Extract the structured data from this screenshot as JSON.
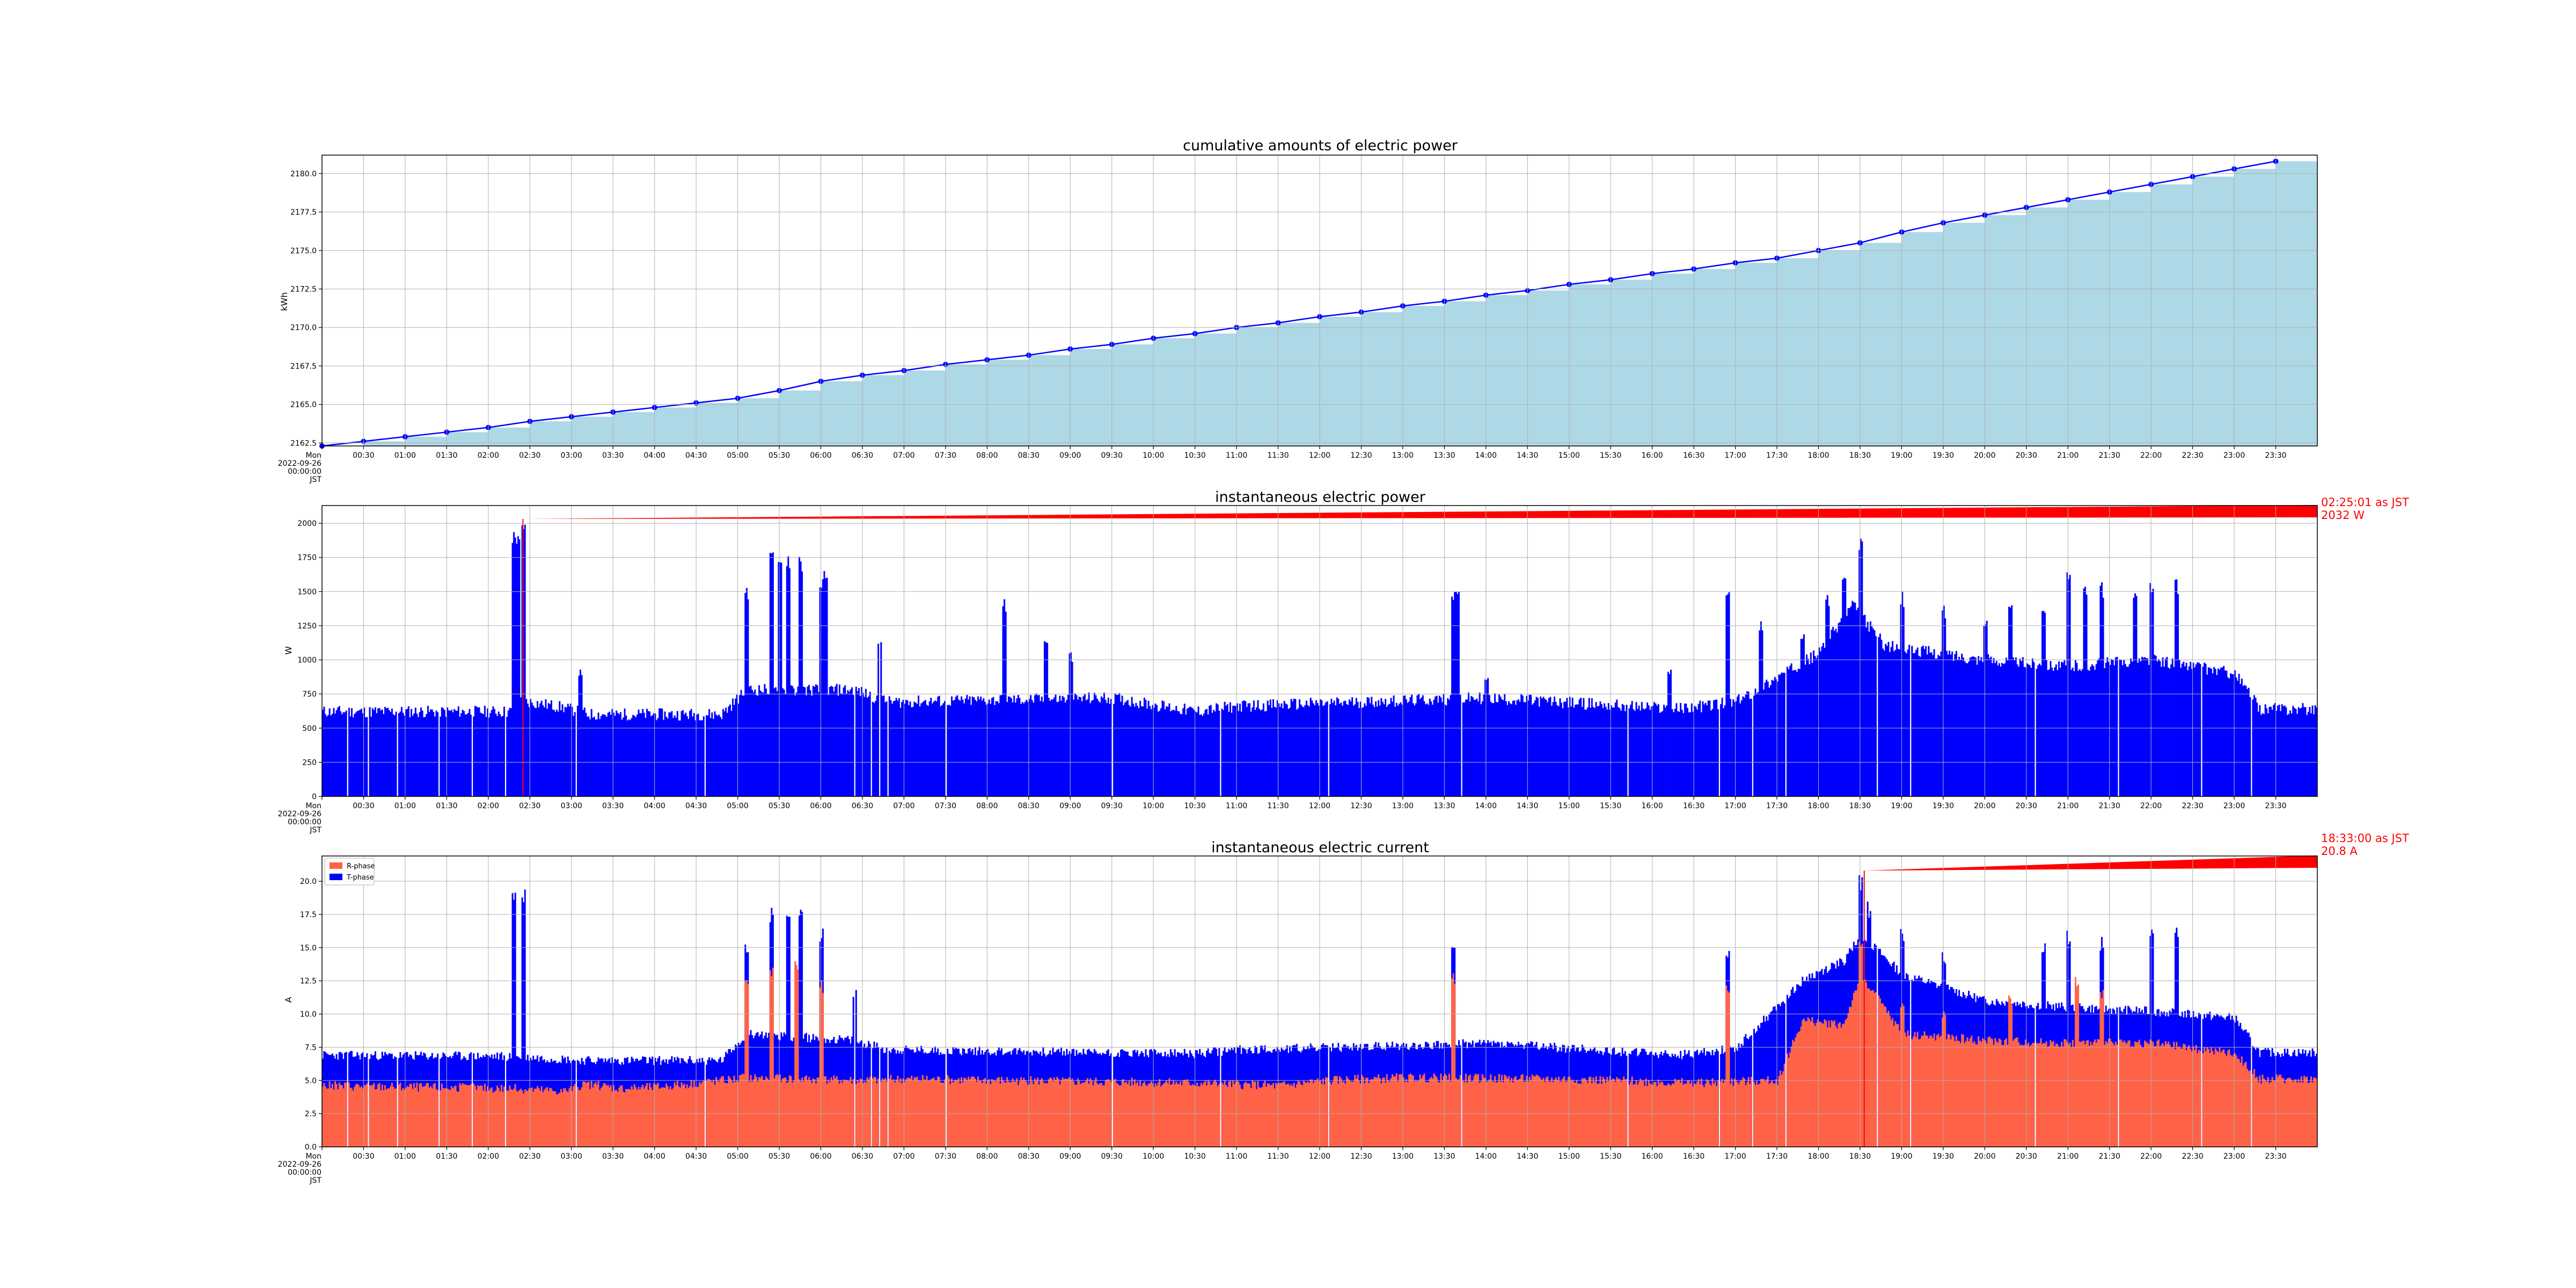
{
  "figure": {
    "background": "#ffffff"
  },
  "time_ticks": [
    "00:30",
    "01:00",
    "01:30",
    "02:00",
    "02:30",
    "03:00",
    "03:30",
    "04:00",
    "04:30",
    "05:00",
    "05:30",
    "06:00",
    "06:30",
    "07:00",
    "07:30",
    "08:00",
    "08:30",
    "09:00",
    "09:30",
    "10:00",
    "10:30",
    "11:00",
    "11:30",
    "12:00",
    "12:30",
    "13:00",
    "13:30",
    "14:00",
    "14:30",
    "15:00",
    "15:30",
    "16:00",
    "16:30",
    "17:00",
    "17:30",
    "18:00",
    "18:30",
    "19:00",
    "19:30",
    "20:00",
    "20:30",
    "21:00",
    "21:30",
    "22:00",
    "22:30",
    "23:00",
    "23:30"
  ],
  "origin_tick_lines": [
    "Mon",
    "2022-09-26",
    "00:00:00",
    "JST"
  ],
  "chart_data": [
    {
      "type": "area",
      "title": "cumulative amounts of electric power",
      "xlabel": "",
      "ylabel": "kWh",
      "x_unit": "hours since 2022-09-26 00:00 JST",
      "xlim": [
        0,
        24
      ],
      "ylim": [
        2162.3,
        2181.2
      ],
      "yticks": [
        2162.5,
        2165.0,
        2167.5,
        2170.0,
        2172.5,
        2175.0,
        2177.5,
        2180.0
      ],
      "grid": true,
      "area_color": "#add8e6",
      "line_color": "#0000ff",
      "x": [
        0,
        0.5,
        1,
        1.5,
        2,
        2.5,
        3,
        3.5,
        4,
        4.5,
        5,
        5.5,
        6,
        6.5,
        7,
        7.5,
        8,
        8.5,
        9,
        9.5,
        10,
        10.5,
        11,
        11.5,
        12,
        12.5,
        13,
        13.5,
        14,
        14.5,
        15,
        15.5,
        16,
        16.5,
        17,
        17.5,
        18,
        18.5,
        19,
        19.5,
        20,
        20.5,
        21,
        21.5,
        22,
        22.5,
        23,
        23.5
      ],
      "values": [
        2162.3,
        2162.6,
        2162.9,
        2163.2,
        2163.5,
        2163.9,
        2164.2,
        2164.5,
        2164.8,
        2165.1,
        2165.4,
        2165.9,
        2166.5,
        2166.9,
        2167.2,
        2167.6,
        2167.9,
        2168.2,
        2168.6,
        2168.9,
        2169.3,
        2169.6,
        2170.0,
        2170.3,
        2170.7,
        2171.0,
        2171.4,
        2171.7,
        2172.1,
        2172.4,
        2172.8,
        2173.1,
        2173.5,
        2173.8,
        2174.2,
        2174.5,
        2175.0,
        2175.5,
        2176.2,
        2176.8,
        2177.3,
        2177.8,
        2178.3,
        2178.8,
        2179.3,
        2179.8,
        2180.3,
        2180.8
      ]
    },
    {
      "type": "bar",
      "title": "instantaneous electric power",
      "xlabel": "",
      "ylabel": "W",
      "x_unit": "hours since 2022-09-26 00:00 JST",
      "xlim": [
        0,
        24
      ],
      "ylim": [
        0,
        2130
      ],
      "yticks": [
        0,
        250,
        500,
        750,
        1000,
        1250,
        1500,
        1750,
        2000
      ],
      "grid": true,
      "bar_color": "#0000ff",
      "peak_annotation": {
        "x": 2.417,
        "y": 2032,
        "text_lines": [
          "02:25:01 as JST",
          "2032 W"
        ],
        "color": "#ff0000"
      },
      "baseline_profile": [
        [
          0,
          620
        ],
        [
          2.25,
          620
        ],
        [
          2.4,
          700
        ],
        [
          2.9,
          650
        ],
        [
          3.2,
          600
        ],
        [
          4.8,
          600
        ],
        [
          5.1,
          780
        ],
        [
          6.4,
          780
        ],
        [
          6.8,
          690
        ],
        [
          9.5,
          720
        ],
        [
          10.5,
          620
        ],
        [
          11,
          660
        ],
        [
          13,
          700
        ],
        [
          14,
          720
        ],
        [
          16.3,
          640
        ],
        [
          17,
          690
        ],
        [
          18,
          1050
        ],
        [
          18.4,
          1400
        ],
        [
          18.8,
          1100
        ],
        [
          20,
          1000
        ],
        [
          21,
          950
        ],
        [
          22,
          1000
        ],
        [
          23,
          900
        ],
        [
          23.3,
          640
        ],
        [
          24,
          640
        ]
      ],
      "spikes": [
        [
          2.3,
          1950
        ],
        [
          2.35,
          1980
        ],
        [
          2.42,
          2032
        ],
        [
          3.1,
          940
        ],
        [
          5.1,
          1530
        ],
        [
          5.4,
          1800
        ],
        [
          5.5,
          1770
        ],
        [
          5.6,
          1780
        ],
        [
          5.75,
          1780
        ],
        [
          6,
          1600
        ],
        [
          6.05,
          1650
        ],
        [
          6.7,
          1180
        ],
        [
          8.2,
          1450
        ],
        [
          8.7,
          1200
        ],
        [
          9,
          1070
        ],
        [
          13.6,
          1560
        ],
        [
          13.65,
          1550
        ],
        [
          14,
          870
        ],
        [
          16.2,
          970
        ],
        [
          16.9,
          1550
        ],
        [
          17.3,
          1300
        ],
        [
          17.8,
          1250
        ],
        [
          18.1,
          1500
        ],
        [
          18.3,
          1650
        ],
        [
          18.5,
          1940
        ],
        [
          19,
          1500
        ],
        [
          19.5,
          1400
        ],
        [
          20,
          1350
        ],
        [
          20.3,
          1400
        ],
        [
          20.7,
          1460
        ],
        [
          21,
          1650
        ],
        [
          21.2,
          1550
        ],
        [
          21.4,
          1580
        ],
        [
          21.8,
          1500
        ],
        [
          22,
          1580
        ],
        [
          22.3,
          1600
        ]
      ],
      "gaps": [
        0.3,
        0.55,
        0.9,
        1.4,
        1.8,
        2.2,
        3.05,
        4.6,
        6.4,
        6.6,
        6.7,
        6.8,
        7.5,
        9.5,
        10.8,
        12.1,
        13.7,
        15.7,
        16.8,
        17.2,
        17.6,
        18.7,
        19.1,
        20.6,
        21.6,
        22.6,
        23.2
      ]
    },
    {
      "type": "area",
      "title": "instantaneous electric current",
      "xlabel": "",
      "ylabel": "A",
      "x_unit": "hours since 2022-09-26 00:00 JST",
      "xlim": [
        0,
        24
      ],
      "ylim": [
        0,
        21.9
      ],
      "yticks": [
        0.0,
        2.5,
        5.0,
        7.5,
        10.0,
        12.5,
        15.0,
        17.5,
        20.0
      ],
      "grid": true,
      "legend": "top-left",
      "peak_annotation": {
        "x": 18.55,
        "y": 20.8,
        "text_lines": [
          "18:33:00 as JST",
          "20.8 A"
        ],
        "color": "#ff0000"
      },
      "series": [
        {
          "name": "R-phase",
          "color": "#ff6347",
          "baseline_profile": [
            [
              0,
              4.6
            ],
            [
              2.25,
              4.4
            ],
            [
              2.9,
              4.2
            ],
            [
              3.2,
              4.7
            ],
            [
              3.6,
              4.4
            ],
            [
              4,
              4.5
            ],
            [
              5.1,
              5.2
            ],
            [
              6.5,
              5.0
            ],
            [
              7,
              5.1
            ],
            [
              10.5,
              4.8
            ],
            [
              11.5,
              4.6
            ],
            [
              12.1,
              5.0
            ],
            [
              13,
              5.2
            ],
            [
              15,
              5.1
            ],
            [
              16.5,
              4.8
            ],
            [
              17.5,
              5.0
            ],
            [
              17.8,
              9.5
            ],
            [
              18.3,
              9.2
            ],
            [
              18.5,
              13
            ],
            [
              19,
              8.5
            ],
            [
              20,
              8.0
            ],
            [
              21,
              7.8
            ],
            [
              22,
              7.8
            ],
            [
              23,
              7.0
            ],
            [
              23.3,
              5.1
            ],
            [
              24,
              5.1
            ]
          ],
          "spikes": [
            [
              5.1,
              12.7
            ],
            [
              5.4,
              13.8
            ],
            [
              5.7,
              14.2
            ],
            [
              6,
              12.5
            ],
            [
              13.6,
              13.3
            ],
            [
              16.9,
              12.5
            ],
            [
              18.5,
              15.5
            ],
            [
              19,
              11
            ],
            [
              19.5,
              10.5
            ],
            [
              20.3,
              11.5
            ],
            [
              21.1,
              13
            ],
            [
              21.4,
              12
            ]
          ]
        },
        {
          "name": "T-phase",
          "color": "#0000ff",
          "baseline_profile": [
            [
              0,
              6.9
            ],
            [
              2.25,
              6.8
            ],
            [
              2.9,
              6.6
            ],
            [
              3.2,
              6.5
            ],
            [
              4.8,
              6.5
            ],
            [
              5.1,
              8.5
            ],
            [
              6.4,
              8.0
            ],
            [
              6.8,
              7.3
            ],
            [
              10.5,
              7.0
            ],
            [
              11,
              7.3
            ],
            [
              13,
              7.6
            ],
            [
              14,
              7.8
            ],
            [
              16.3,
              6.9
            ],
            [
              17,
              7.4
            ],
            [
              17.8,
              12.5
            ],
            [
              18.3,
              14
            ],
            [
              18.5,
              16
            ],
            [
              19,
              13
            ],
            [
              20,
              11
            ],
            [
              21,
              10.5
            ],
            [
              22,
              10.2
            ],
            [
              23,
              9.7
            ],
            [
              23.3,
              7.1
            ],
            [
              24,
              7.1
            ]
          ],
          "spikes": [
            [
              2.3,
              19.8
            ],
            [
              2.42,
              19.9
            ],
            [
              5.1,
              15.5
            ],
            [
              5.4,
              18.3
            ],
            [
              5.6,
              18
            ],
            [
              5.75,
              17.9
            ],
            [
              6,
              16.5
            ],
            [
              6.4,
              12
            ],
            [
              13.6,
              15.8
            ],
            [
              16.9,
              15.2
            ],
            [
              18.5,
              20.8
            ],
            [
              18.6,
              18.5
            ],
            [
              19,
              16.5
            ],
            [
              19.5,
              15
            ],
            [
              20.7,
              15.5
            ],
            [
              21,
              16.5
            ],
            [
              21.4,
              15.8
            ],
            [
              22,
              17.2
            ],
            [
              22.3,
              16.5
            ]
          ]
        }
      ],
      "gaps": [
        0.3,
        0.55,
        0.9,
        1.4,
        1.8,
        2.2,
        3.05,
        4.6,
        6.4,
        6.6,
        6.7,
        6.8,
        7.5,
        9.5,
        10.8,
        12.1,
        13.7,
        15.7,
        16.8,
        17.2,
        17.6,
        18.7,
        19.1,
        20.6,
        21.6,
        22.6,
        23.2
      ]
    }
  ]
}
